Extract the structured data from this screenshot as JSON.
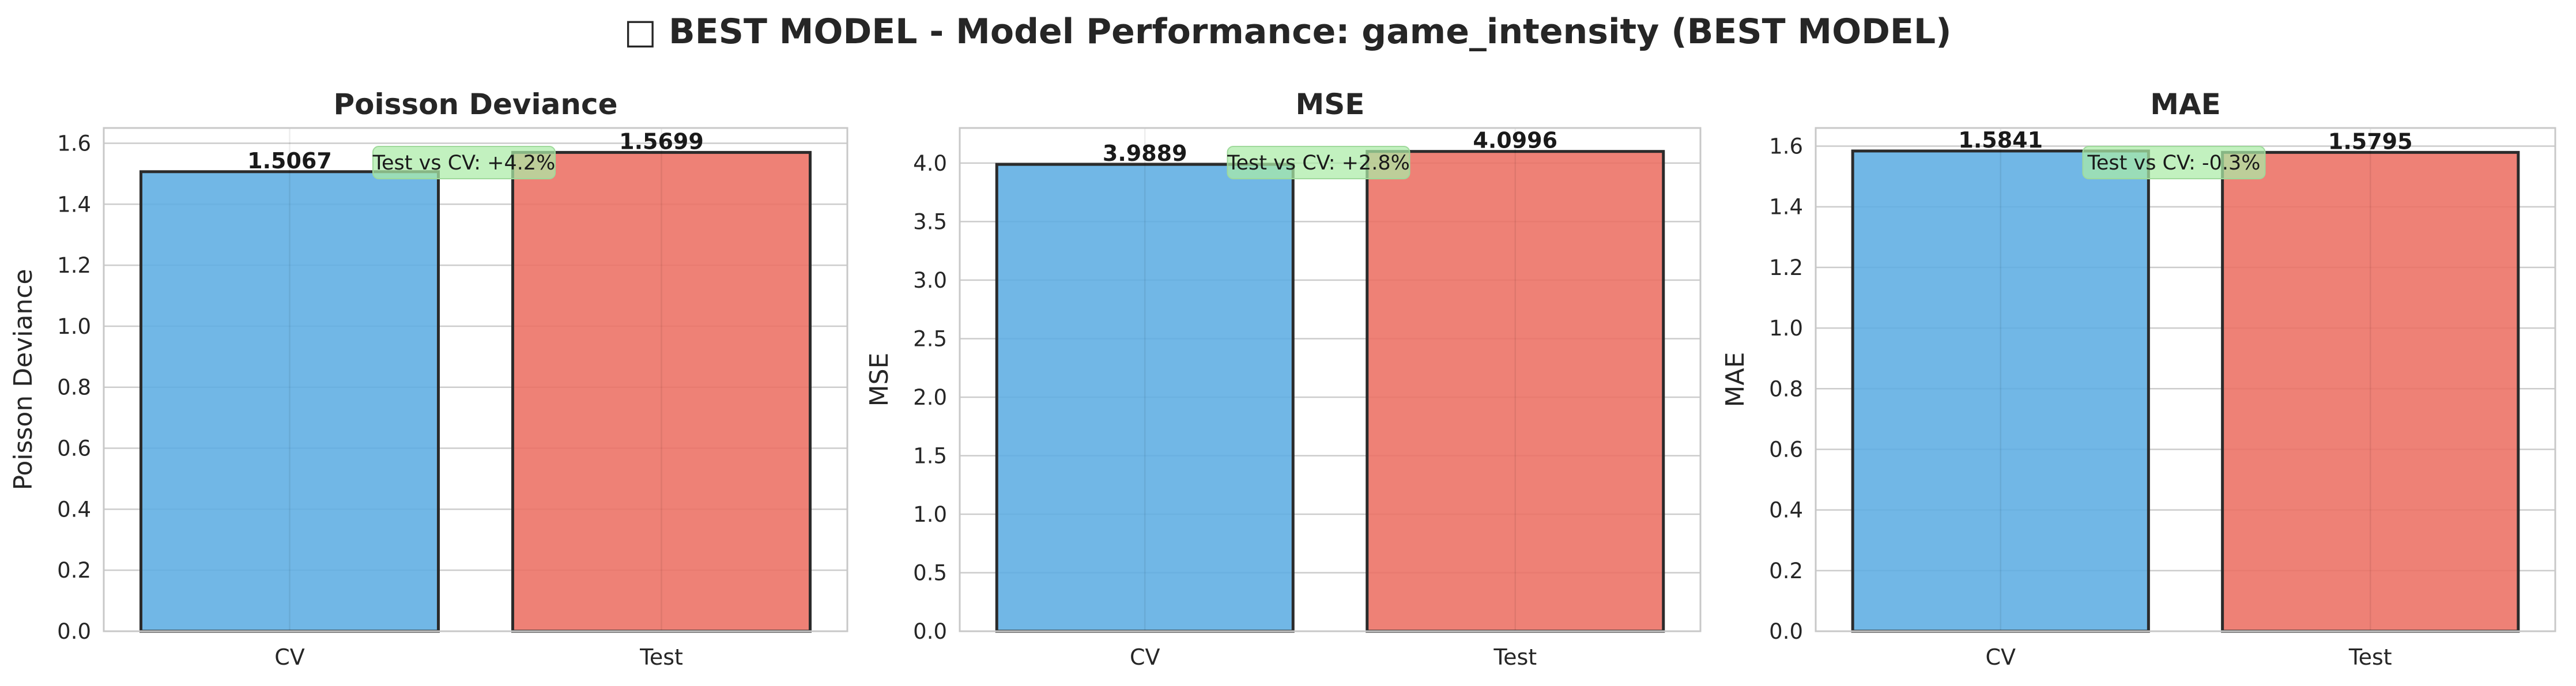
{
  "figure": {
    "suptitle": "□ BEST MODEL - Model Performance: game_intensity (BEST MODEL)"
  },
  "colors": {
    "cv": "#5DADE2",
    "test": "#EC7063",
    "bar_edge": "#2b2b2b",
    "annotation_bg": "#ABEBA6",
    "grid": "#cccccc",
    "spine": "#c8c8c8",
    "text": "#262626"
  },
  "chart_data": [
    {
      "type": "bar",
      "title": "Poisson Deviance",
      "xlabel": "",
      "ylabel": "Poisson Deviance",
      "categories": [
        "CV",
        "Test"
      ],
      "values": [
        1.5067,
        1.5699
      ],
      "value_labels": [
        "1.5067",
        "1.5699"
      ],
      "ylim": [
        0,
        1.65
      ],
      "yticks": [
        0.0,
        0.2,
        0.4,
        0.6,
        0.8,
        1.0,
        1.2,
        1.4,
        1.6
      ],
      "ytick_labels": [
        "0.0",
        "0.2",
        "0.4",
        "0.6",
        "0.8",
        "1.0",
        "1.2",
        "1.4",
        "1.6"
      ],
      "annotation": "Test vs CV: +4.2%",
      "grid": true,
      "legend": "none"
    },
    {
      "type": "bar",
      "title": "MSE",
      "xlabel": "",
      "ylabel": "MSE",
      "categories": [
        "CV",
        "Test"
      ],
      "values": [
        3.9889,
        4.0996
      ],
      "value_labels": [
        "3.9889",
        "4.0996"
      ],
      "ylim": [
        0,
        4.3
      ],
      "yticks": [
        0.0,
        0.5,
        1.0,
        1.5,
        2.0,
        2.5,
        3.0,
        3.5,
        4.0
      ],
      "ytick_labels": [
        "0.0",
        "0.5",
        "1.0",
        "1.5",
        "2.0",
        "2.5",
        "3.0",
        "3.5",
        "4.0"
      ],
      "annotation": "Test vs CV: +2.8%",
      "grid": true,
      "legend": "none"
    },
    {
      "type": "bar",
      "title": "MAE",
      "xlabel": "",
      "ylabel": "MAE",
      "categories": [
        "CV",
        "Test"
      ],
      "values": [
        1.5841,
        1.5795
      ],
      "value_labels": [
        "1.5841",
        "1.5795"
      ],
      "ylim": [
        0,
        1.66
      ],
      "yticks": [
        0.0,
        0.2,
        0.4,
        0.6,
        0.8,
        1.0,
        1.2,
        1.4,
        1.6
      ],
      "ytick_labels": [
        "0.0",
        "0.2",
        "0.4",
        "0.6",
        "0.8",
        "1.0",
        "1.2",
        "1.4",
        "1.6"
      ],
      "annotation": "Test vs CV: -0.3%",
      "grid": true,
      "legend": "none"
    }
  ]
}
